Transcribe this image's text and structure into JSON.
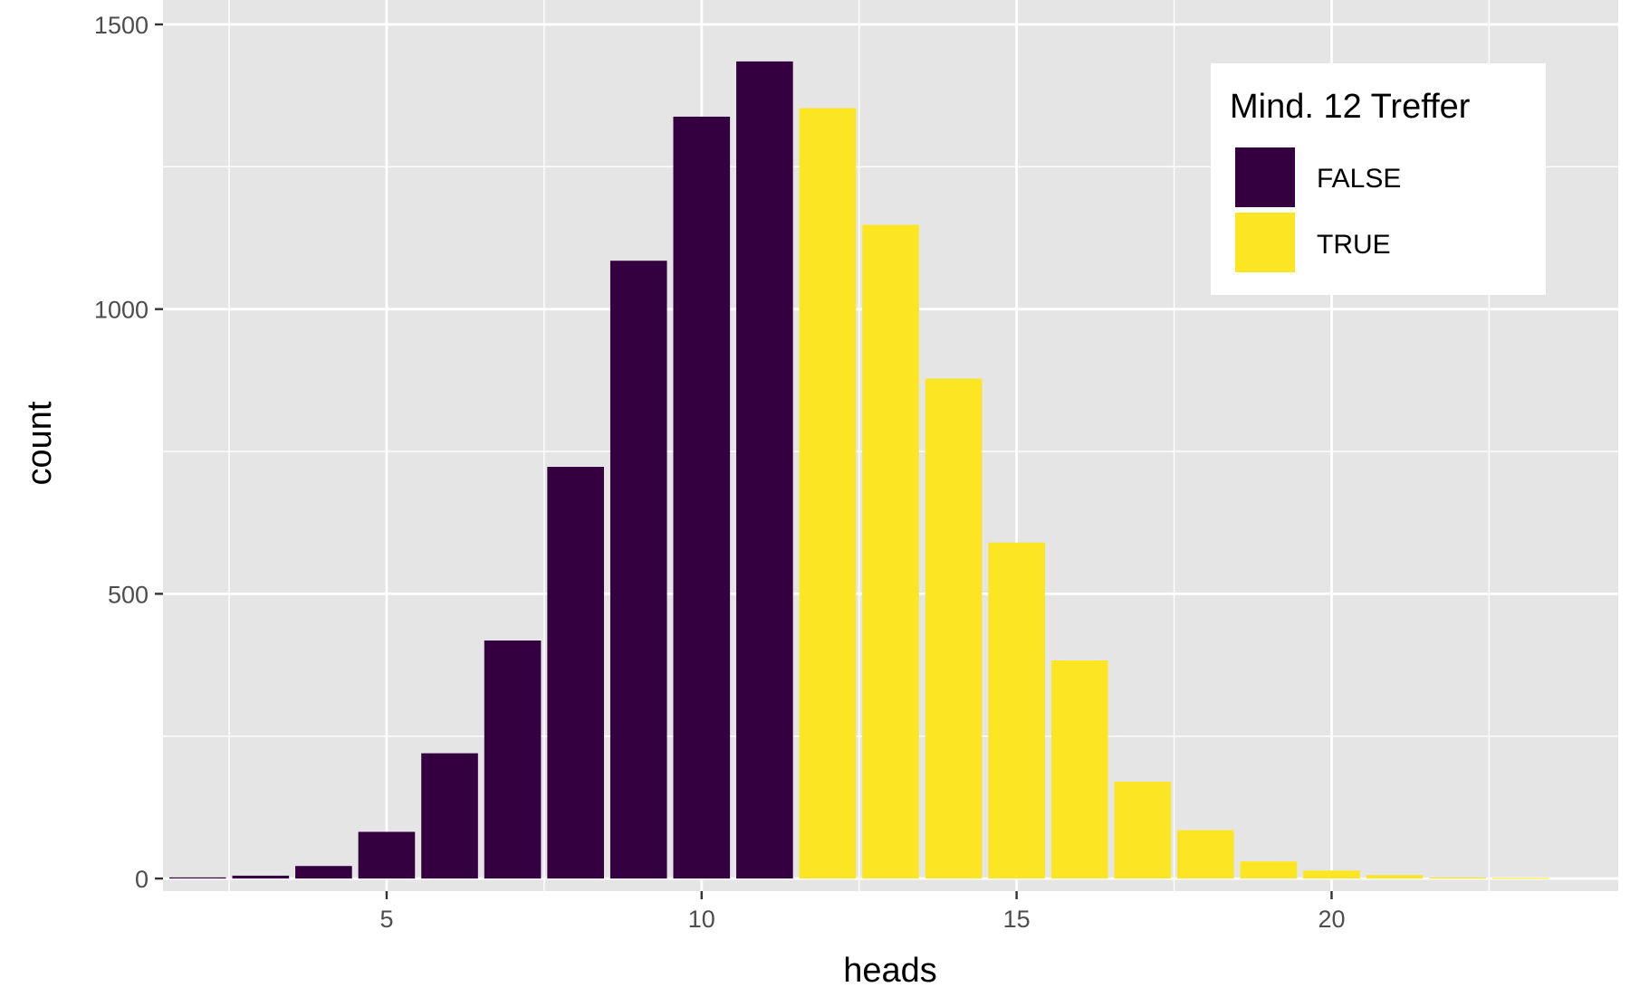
{
  "chart_data": {
    "type": "bar",
    "xlabel": "heads",
    "ylabel": "count",
    "xlim": [
      1.45,
      24.55
    ],
    "ylim": [
      -65,
      1500
    ],
    "xticks": [
      5,
      10,
      15,
      20
    ],
    "yticks": [
      0,
      500,
      1000,
      1500
    ],
    "x_minor_gridlines": [
      2.5,
      7.5,
      12.5,
      17.5,
      22.5
    ],
    "y_minor_gridlines": [
      250,
      750,
      1250
    ],
    "grid": true,
    "legend": {
      "title": "Mind. 12 Treffer",
      "position": "top-right",
      "entries": [
        {
          "label": "FALSE",
          "color": "#35003F"
        },
        {
          "label": "TRUE",
          "color": "#FCE522"
        }
      ]
    },
    "colors": {
      "FALSE": "#35003F",
      "TRUE": "#FCE522",
      "panel": "#E5E5E5",
      "grid": "#FFFFFF"
    },
    "bars": [
      {
        "x": 2,
        "count": 2,
        "group": "FALSE"
      },
      {
        "x": 3,
        "count": 5,
        "group": "FALSE"
      },
      {
        "x": 4,
        "count": 22,
        "group": "FALSE"
      },
      {
        "x": 5,
        "count": 82,
        "group": "FALSE"
      },
      {
        "x": 6,
        "count": 220,
        "group": "FALSE"
      },
      {
        "x": 7,
        "count": 418,
        "group": "FALSE"
      },
      {
        "x": 8,
        "count": 723,
        "group": "FALSE"
      },
      {
        "x": 9,
        "count": 1085,
        "group": "FALSE"
      },
      {
        "x": 10,
        "count": 1338,
        "group": "FALSE"
      },
      {
        "x": 11,
        "count": 1435,
        "group": "FALSE"
      },
      {
        "x": 12,
        "count": 1353,
        "group": "TRUE"
      },
      {
        "x": 13,
        "count": 1148,
        "group": "TRUE"
      },
      {
        "x": 14,
        "count": 878,
        "group": "TRUE"
      },
      {
        "x": 15,
        "count": 590,
        "group": "TRUE"
      },
      {
        "x": 16,
        "count": 383,
        "group": "TRUE"
      },
      {
        "x": 17,
        "count": 170,
        "group": "TRUE"
      },
      {
        "x": 18,
        "count": 85,
        "group": "TRUE"
      },
      {
        "x": 19,
        "count": 30,
        "group": "TRUE"
      },
      {
        "x": 20,
        "count": 14,
        "group": "TRUE"
      },
      {
        "x": 21,
        "count": 6,
        "group": "TRUE"
      },
      {
        "x": 22,
        "count": 2,
        "group": "TRUE"
      },
      {
        "x": 23,
        "count": 1,
        "group": "TRUE"
      }
    ]
  }
}
